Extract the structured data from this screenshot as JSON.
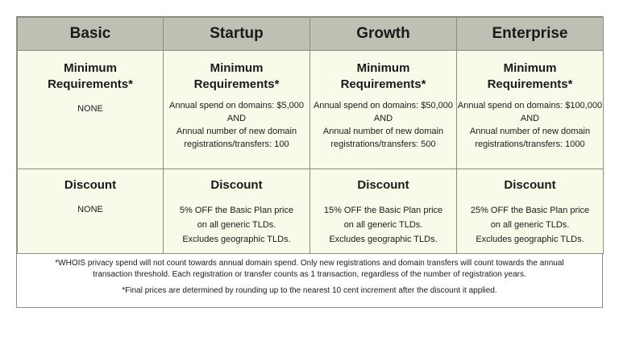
{
  "columns": [
    "Basic",
    "Startup",
    "Growth",
    "Enterprise"
  ],
  "requirements": {
    "heading": "Minimum Requirements*",
    "basic": "NONE",
    "startup": [
      "Annual spend on domains: $5,000",
      "AND",
      "Annual number of new domain registrations/transfers: 100"
    ],
    "growth": [
      "Annual spend on domains: $50,000",
      "AND",
      "Annual number of new domain registrations/transfers: 500"
    ],
    "enterprise": [
      "Annual spend on domains: $100,000",
      "AND",
      "Annual number of new domain registrations/transfers: 1000"
    ]
  },
  "discount": {
    "heading": "Discount",
    "basic": "NONE",
    "startup": [
      "5% OFF the Basic Plan price on all generic TLDs.",
      "Excludes geographic TLDs."
    ],
    "growth": [
      "15% OFF the Basic Plan price on all generic TLDs.",
      "Excludes geographic TLDs."
    ],
    "enterprise": [
      "25% OFF the Basic Plan price on all generic TLDs.",
      "Excludes geographic TLDs."
    ]
  },
  "footnotes": {
    "note1": "*WHOIS privacy spend will not count towards annual domain spend. Only new registrations and domain transfers will count towards the annual transaction threshold. Each registration or transfer counts as 1 transaction, regardless of the number of registration years.",
    "note2": "*Final prices are determined by rounding up to the nearest 10 cent increment after the discount it applied."
  }
}
